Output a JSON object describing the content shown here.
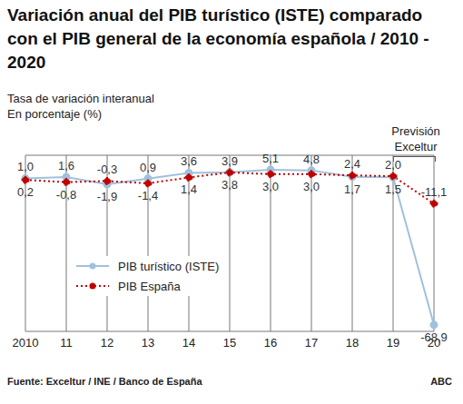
{
  "chart_data": {
    "type": "line",
    "title": "Variación anual del PIB turístico (ISTE) comparado con el PIB general de la economía española / 2010 - 2020",
    "subtitle": [
      "Tasa de variación interanual",
      "En porcentaje (%)"
    ],
    "annotations": [
      "Previsión Exceltur"
    ],
    "source": "Fuente: Exceltur / INE / Banco de España",
    "credit": "ABC",
    "categories": [
      "2010",
      "11",
      "12",
      "13",
      "14",
      "15",
      "16",
      "17",
      "18",
      "19",
      "20"
    ],
    "series": [
      {
        "name": "PIB turístico (ISTE)",
        "color": "#9fc1dc",
        "marker": "circle",
        "line_style": "solid",
        "values": [
          1.0,
          1.6,
          -1.9,
          0.9,
          3.6,
          3.9,
          5.1,
          4.8,
          1.7,
          1.5,
          -68.9
        ],
        "value_labels": [
          "1,0",
          "1,6",
          "-1,9",
          "0,9",
          "3,6",
          "3,9",
          "5,1",
          "4,8",
          "1,7",
          "1,5",
          "-68,9"
        ]
      },
      {
        "name": "PIB España",
        "color": "#c00000",
        "marker": "circle",
        "line_style": "dotted",
        "values": [
          0.2,
          -0.8,
          -0.3,
          -1.4,
          1.4,
          3.8,
          3.0,
          3.0,
          2.4,
          2.0,
          -11.1
        ],
        "value_labels": [
          "0,2",
          "-0,8",
          "-0,3",
          "-1,4",
          "1,4",
          "3,8",
          "3,0",
          "3,0",
          "2,4",
          "2,0",
          "-11,1"
        ]
      }
    ],
    "ylim": [
      -72,
      12
    ],
    "yticks": [
      0
    ],
    "grid": true,
    "tick_labels": "x",
    "data_labels": true,
    "legend": "lower left"
  }
}
